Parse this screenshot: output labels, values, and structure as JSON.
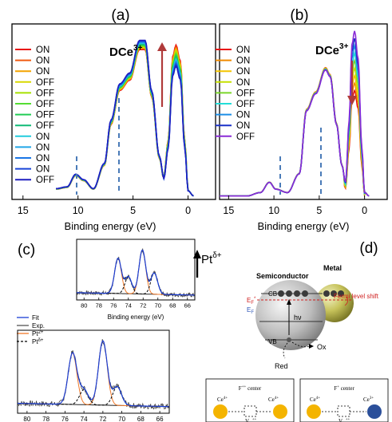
{
  "panel_labels": {
    "a": "(a)",
    "b": "(b)",
    "c": "(c)",
    "d": "(d)"
  },
  "axes": {
    "xlabel": "Binding energy (eV)",
    "top_ticks": [
      "15",
      "10",
      "5",
      "0"
    ],
    "inset_ticks": [
      "80",
      "78",
      "76",
      "74",
      "72",
      "70",
      "68",
      "66"
    ]
  },
  "annotations": {
    "dce_main": "DCe",
    "dce_sup": "3+",
    "pt_main": "Pt",
    "pt_sup": "δ+"
  },
  "legend_a": [
    "ON",
    "ON",
    "ON",
    "OFF",
    "OFF",
    "OFF",
    "OFF",
    "OFF",
    "ON",
    "ON",
    "ON",
    "ON",
    "OFF"
  ],
  "legend_a_colors": [
    "#e8110e",
    "#f05a10",
    "#f4a400",
    "#d8d800",
    "#a6e000",
    "#55dd33",
    "#22cc55",
    "#11bb77",
    "#22ccdd",
    "#22a6e8",
    "#1a76e6",
    "#1844d8",
    "#1f1fc0"
  ],
  "legend_b": [
    "ON",
    "ON",
    "ON",
    "ON",
    "OFF",
    "OFF",
    "ON",
    "ON",
    "OFF"
  ],
  "legend_b_colors": [
    "#e8110e",
    "#f08a00",
    "#f4c400",
    "#c6e000",
    "#7ad62a",
    "#22ddd8",
    "#1c8ee6",
    "#1a30c8",
    "#8a2bd6"
  ],
  "legend_c": [
    {
      "label": "Fit",
      "color": "#1a3fd6",
      "style": "solid"
    },
    {
      "label": "Exp.",
      "color": "#555555",
      "style": "solid"
    },
    {
      "label": "Pt",
      "sup": "2+",
      "color": "#f07a2a",
      "style": "solid"
    },
    {
      "label": "Pt",
      "sup": "δ+",
      "color": "#000000",
      "style": "dashed"
    }
  ],
  "diagram_d": {
    "semiconductor": "Semiconductor",
    "metal": "Metal",
    "cb": "CB",
    "vb": "VB",
    "ef_star": "E",
    "ef_star_sub": "F",
    "ef_star_sup": "*",
    "ef": "E",
    "ef_sub": "F",
    "fermi_shift": "Fermi level shift",
    "hv": "hν",
    "ox": "Ox",
    "red": "Red"
  },
  "fcenter_1": {
    "title": "F",
    "title_sup": "++",
    "title_rest": " center",
    "left": "Ce",
    "left_sup": "4+",
    "right": "Ce",
    "right_sup": "4+",
    "vac": "V",
    "vac_sub": "O",
    "vac_sup": "++"
  },
  "fcenter_2": {
    "title": "F",
    "title_sup": "+",
    "title_rest": " center",
    "left": "Ce",
    "left_sup": "4+",
    "right": "Ce",
    "right_sup": "3+",
    "vac": "V",
    "vac_sub": "O",
    "vac_sup": "++"
  },
  "chart_data": [
    {
      "type": "line",
      "panel": "(a)",
      "xlabel": "Binding energy (eV)",
      "xlim": [
        16,
        -2.5
      ],
      "xticks": [
        15,
        10,
        5,
        0
      ],
      "annotation": "DCe3+ (increasing)",
      "guide_lines_eV": [
        10,
        6
      ],
      "series_template": [
        [
          12,
          0.06
        ],
        [
          11,
          0.07
        ],
        [
          10.2,
          0.14
        ],
        [
          9.5,
          0.11
        ],
        [
          8.6,
          0.06
        ],
        [
          7.6,
          0.2
        ],
        [
          7,
          0.44
        ],
        [
          6.2,
          0.64
        ],
        [
          5.3,
          0.7
        ],
        [
          4.4,
          0.88
        ],
        [
          3.9,
          0.88
        ],
        [
          3.3,
          0.6
        ],
        [
          2.6,
          0.24
        ],
        [
          2.2,
          0.12
        ],
        [
          1.8,
          0.3
        ],
        [
          1.4,
          0.72
        ],
        [
          1.1,
          0.78
        ],
        [
          0.7,
          0.7
        ],
        [
          0.3,
          0.3
        ],
        [
          0,
          0.05
        ],
        [
          -0.5,
          0.02
        ]
      ],
      "peak_height_at_1.5eV": {
        "first": 0.88,
        "last": 0.76
      },
      "series_names": [
        "ON",
        "ON",
        "ON",
        "OFF",
        "OFF",
        "OFF",
        "OFF",
        "OFF",
        "ON",
        "ON",
        "ON",
        "ON",
        "OFF"
      ]
    },
    {
      "type": "line",
      "panel": "(b)",
      "xlabel": "Binding energy (eV)",
      "xlim": [
        16,
        -2.5
      ],
      "xticks": [
        15,
        10,
        5,
        0
      ],
      "annotation": "DCe3+ (decreasing)",
      "guide_lines_eV": [
        10.5,
        6
      ],
      "series_template": [
        [
          16,
          0.02
        ],
        [
          13,
          0.02
        ],
        [
          11.5,
          0.04
        ],
        [
          10.5,
          0.1
        ],
        [
          9.8,
          0.06
        ],
        [
          8.5,
          0.04
        ],
        [
          7.2,
          0.15
        ],
        [
          6.4,
          0.52
        ],
        [
          5.4,
          0.62
        ],
        [
          4.3,
          0.76
        ],
        [
          3.8,
          0.72
        ],
        [
          3.1,
          0.44
        ],
        [
          2.5,
          0.2
        ],
        [
          2.1,
          0.1
        ],
        [
          1.7,
          0.45
        ],
        [
          1.4,
          0.88
        ],
        [
          1.1,
          0.96
        ],
        [
          0.7,
          0.8
        ],
        [
          0.3,
          0.3
        ],
        [
          0,
          0.04
        ],
        [
          -0.5,
          0.02
        ]
      ],
      "peak_height_at_1.5eV": {
        "first": 0.62,
        "last": 0.96
      },
      "series_names": [
        "ON",
        "ON",
        "ON",
        "ON",
        "OFF",
        "OFF",
        "ON",
        "ON",
        "OFF"
      ]
    },
    {
      "type": "line",
      "panel": "(c) inset (upper)",
      "xlabel": "Binding energy (eV)",
      "xlim": [
        81,
        65
      ],
      "xticks": [
        80,
        78,
        76,
        74,
        72,
        70,
        68,
        66
      ],
      "peaks_eV": {
        "Pt2+": [
          75.4,
          72.1
        ],
        "Ptδ+": [
          74.0,
          70.5
        ]
      },
      "annotation": "Ptδ+ (increasing)"
    },
    {
      "type": "line",
      "panel": "(c) lower",
      "xlim": [
        81,
        65
      ],
      "xticks": [
        80,
        78,
        76,
        74,
        72,
        70,
        68,
        66
      ],
      "peaks_eV": {
        "Pt2+": [
          75.2,
          72.0
        ],
        "Ptδ+": [
          74.0,
          70.5
        ]
      },
      "series_names": [
        "Fit",
        "Exp.",
        "Pt2+",
        "Ptδ+"
      ]
    }
  ]
}
